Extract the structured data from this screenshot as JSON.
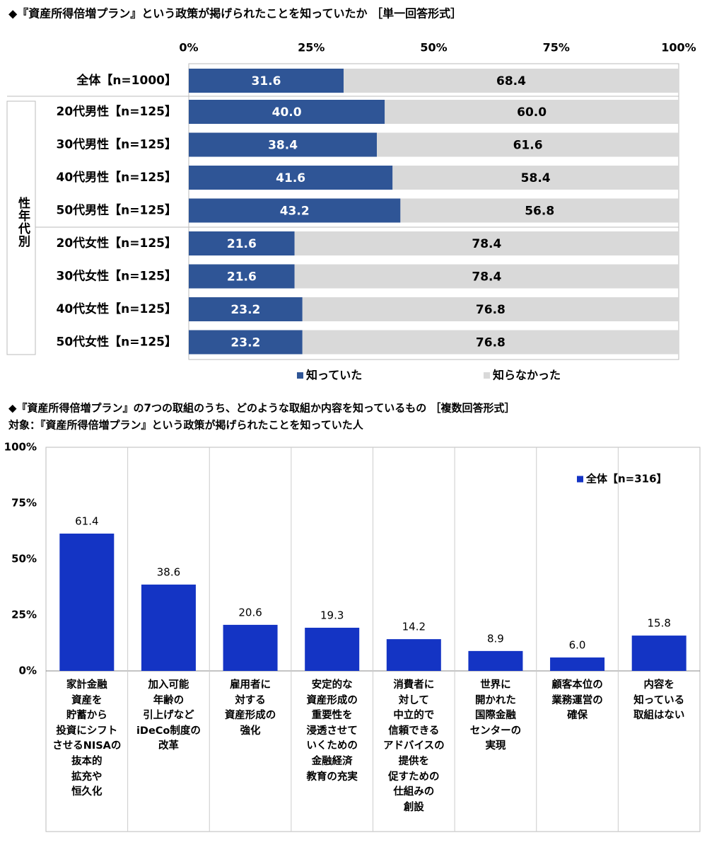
{
  "chart_data": [
    {
      "type": "barh",
      "title": "◆『資産所得倍増プラン』という政策が掲げられたことを知っていたか ［単一回答形式］",
      "categories": [
        "全体【n=1000】",
        "20代男性【n=125】",
        "30代男性【n=125】",
        "40代男性【n=125】",
        "50代男性【n=125】",
        "20代女性【n=125】",
        "30代女性【n=125】",
        "40代女性【n=125】",
        "50代女性【n=125】"
      ],
      "group_label": "性年代別",
      "stacked": true,
      "series": [
        {
          "name": "知っていた",
          "color": "#2f5596",
          "values": [
            31.6,
            40.0,
            38.4,
            41.6,
            43.2,
            21.6,
            21.6,
            23.2,
            23.2
          ],
          "value_labels": [
            "31.6",
            "40.0",
            "38.4",
            "41.6",
            "43.2",
            "21.6",
            "21.6",
            "23.2",
            "23.2"
          ]
        },
        {
          "name": "知らなかった",
          "color": "#d9d9d9",
          "values": [
            68.4,
            60.0,
            61.6,
            58.4,
            56.8,
            78.4,
            78.4,
            76.8,
            76.8
          ],
          "value_labels": [
            "68.4",
            "60.0",
            "61.6",
            "58.4",
            "56.8",
            "78.4",
            "78.4",
            "76.8",
            "76.8"
          ]
        }
      ],
      "xlim": [
        0,
        100
      ],
      "xticks": [
        {
          "value": 0,
          "label": "0%"
        },
        {
          "value": 25,
          "label": "25%"
        },
        {
          "value": 50,
          "label": "50%"
        },
        {
          "value": 75,
          "label": "75%"
        },
        {
          "value": 100,
          "label": "100%"
        }
      ],
      "legend": "bottom"
    },
    {
      "type": "bar",
      "title": "◆『資産所得倍増プラン』の7つの取組のうち、どのような取組か内容を知っているもの ［複数回答形式］",
      "subtitle": "対象：『資産所得倍増プラン』という政策が掲げられたことを知っていた人",
      "categories": [
        "家計金融\n資産を\n貯蓄から\n投資にシフト\nさせるNISAの\n抜本的\n拡充や\n恒久化",
        "加入可能\n年齢の\n引上げなど\niDeCo制度の\n改革",
        "雇用者に\n対する\n資産形成の\n強化",
        "安定的な\n資産形成の\n重要性を\n浸透させて\nいくための\n金融経済\n教育の充実",
        "消費者に\n対して\n中立的で\n信頼できる\nアドバイスの\n提供を\n促すための\n仕組みの\n創設",
        "世界に\n開かれた\n国際金融\nセンターの\n実現",
        "顧客本位の\n業務運営の\n確保",
        "内容を\n知っている\n取組はない"
      ],
      "series": [
        {
          "name": "全体【n=316】",
          "color": "#1434c4",
          "values": [
            61.4,
            38.6,
            20.6,
            19.3,
            14.2,
            8.9,
            6.0,
            15.8
          ],
          "value_labels": [
            "61.4",
            "38.6",
            "20.6",
            "19.3",
            "14.2",
            "8.9",
            "6.0",
            "15.8"
          ]
        }
      ],
      "ylim": [
        0,
        100
      ],
      "yticks": [
        {
          "value": 0,
          "label": "0%"
        },
        {
          "value": 25,
          "label": "25%"
        },
        {
          "value": 50,
          "label": "50%"
        },
        {
          "value": 75,
          "label": "75%"
        },
        {
          "value": 100,
          "label": "100%"
        }
      ],
      "legend": "top-right"
    }
  ]
}
